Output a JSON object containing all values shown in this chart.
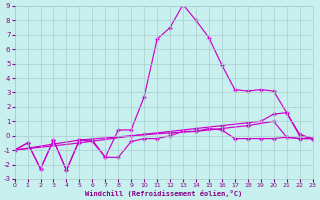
{
  "bg_color": "#c8f0ee",
  "grid_color": "#aacccc",
  "line_color": "#cc00cc",
  "xlim": [
    0,
    23
  ],
  "ylim": [
    -3,
    9
  ],
  "xticks": [
    0,
    1,
    2,
    3,
    4,
    5,
    6,
    7,
    8,
    9,
    10,
    11,
    12,
    13,
    14,
    15,
    16,
    17,
    18,
    19,
    20,
    21,
    22,
    23
  ],
  "yticks": [
    -3,
    -2,
    -1,
    0,
    1,
    2,
    3,
    4,
    5,
    6,
    7,
    8,
    9
  ],
  "xlabel": "Windchill (Refroidissement éolien,°C)",
  "line1_x": [
    0,
    1,
    2,
    3,
    4,
    5,
    6,
    7,
    8,
    9,
    10,
    11,
    12,
    13,
    14,
    15,
    16,
    17,
    18,
    19,
    20,
    21,
    22,
    23
  ],
  "line1_y": [
    -1.0,
    -0.5,
    -2.3,
    -0.3,
    -2.4,
    -0.3,
    -0.3,
    -1.5,
    0.4,
    0.4,
    2.7,
    6.7,
    7.5,
    9.1,
    8.0,
    6.8,
    4.9,
    3.2,
    3.1,
    3.2,
    3.1,
    1.6,
    0.0,
    -0.2
  ],
  "line2_x": [
    0,
    1,
    2,
    3,
    4,
    5,
    6,
    7,
    8,
    9,
    10,
    11,
    12,
    13,
    14,
    15,
    16,
    17,
    18,
    19,
    20,
    21,
    22,
    23
  ],
  "line2_y": [
    -1.0,
    -0.5,
    -2.3,
    -0.3,
    -2.4,
    -0.3,
    -0.4,
    -1.5,
    -1.5,
    -0.4,
    -0.2,
    -0.2,
    0.0,
    0.3,
    0.3,
    0.5,
    0.4,
    -0.2,
    -0.2,
    -0.2,
    -0.2,
    -0.1,
    -0.2,
    -0.2
  ],
  "line3_x": [
    0,
    5,
    10,
    14,
    16,
    18,
    19,
    20,
    21,
    22,
    23
  ],
  "line3_y": [
    -1.0,
    -0.5,
    0.1,
    0.5,
    0.7,
    0.9,
    1.0,
    1.5,
    1.6,
    0.1,
    -0.2
  ],
  "line4_x": [
    0,
    5,
    9,
    12,
    14,
    16,
    18,
    20,
    21,
    22,
    23
  ],
  "line4_y": [
    -1.0,
    -0.3,
    0.0,
    0.2,
    0.3,
    0.5,
    0.7,
    1.0,
    -0.1,
    -0.2,
    -0.2
  ]
}
